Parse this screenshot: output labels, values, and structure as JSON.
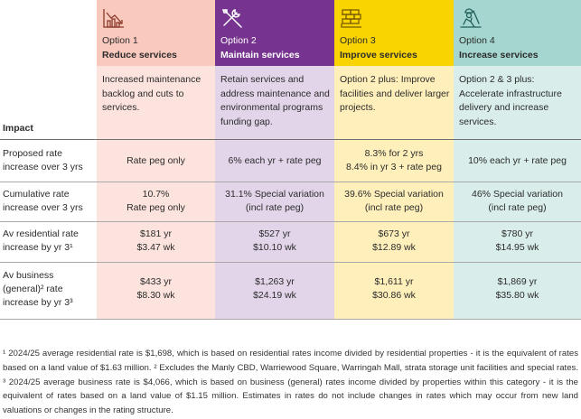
{
  "impact_label": "Impact",
  "options": [
    {
      "number": "Option 1",
      "title": "Reduce services",
      "icon": "falling-chart-icon",
      "description": "Increased maintenance backlog and cuts to services.",
      "header_color": "#f9c9be",
      "body_color": "#fce3dd"
    },
    {
      "number": "Option 2",
      "title": "Maintain services",
      "icon": "tools-icon",
      "description": "Retain services and address maintenance and environmental programs funding gap.",
      "header_color": "#76338f",
      "body_color": "#e2d5ea"
    },
    {
      "number": "Option 3",
      "title": "Improve services",
      "icon": "bricks-icon",
      "description": "Option 2 plus: Improve facilities and deliver larger projects.",
      "header_color": "#fad400",
      "body_color": "#fff0bb"
    },
    {
      "number": "Option 4",
      "title": "Increase services",
      "icon": "construction-worker-icon",
      "description": "Option 2 & 3 plus: Accelerate infrastructure delivery and increase services.",
      "header_color": "#a5d7d0",
      "body_color": "#d9eeeb"
    }
  ],
  "rows": [
    {
      "label": "Proposed rate increase over 3 yrs",
      "values": [
        "Rate peg only",
        "6% each yr + rate peg",
        "8.3% for 2 yrs\n8.4% in yr 3 + rate peg",
        "10% each yr + rate peg"
      ]
    },
    {
      "label": "Cumulative rate increase over 3 yrs",
      "values": [
        "10.7%\nRate peg only",
        "31.1% Special variation\n(incl rate peg)",
        "39.6% Special variation\n(incl rate peg)",
        "46% Special variation\n(incl rate peg)"
      ]
    },
    {
      "label": "Av residential rate increase by yr 3¹",
      "values": [
        "$181 yr\n$3.47 wk",
        "$527 yr\n$10.10 wk",
        "$673 yr\n$12.89 wk",
        "$780 yr\n$14.95 wk"
      ]
    },
    {
      "label": "Av business (general)² rate increase by yr 3³",
      "values": [
        "$433 yr\n$8.30 wk",
        "$1,263 yr\n$24.19 wk",
        "$1,611 yr\n$30.86 wk",
        "$1,869 yr\n$35.80 wk"
      ]
    }
  ],
  "footnote": "¹ 2024/25 average residential rate is $1,698, which is based on residential rates income divided by residential properties - it is the equivalent of rates based on a land value of $1.63 million.  ² Excludes the Manly CBD, Warriewood Square, Warringah Mall, strata storage unit facilities and special rates.  ³ 2024/25 average business rate is $4,066, which is based on business (general) rates income divided by properties within this category - it is the equivalent of rates based on a land value of $1.15 million. Estimates in rates do not include changes in rates which may occur from new land valuations or changes in the rating structure."
}
